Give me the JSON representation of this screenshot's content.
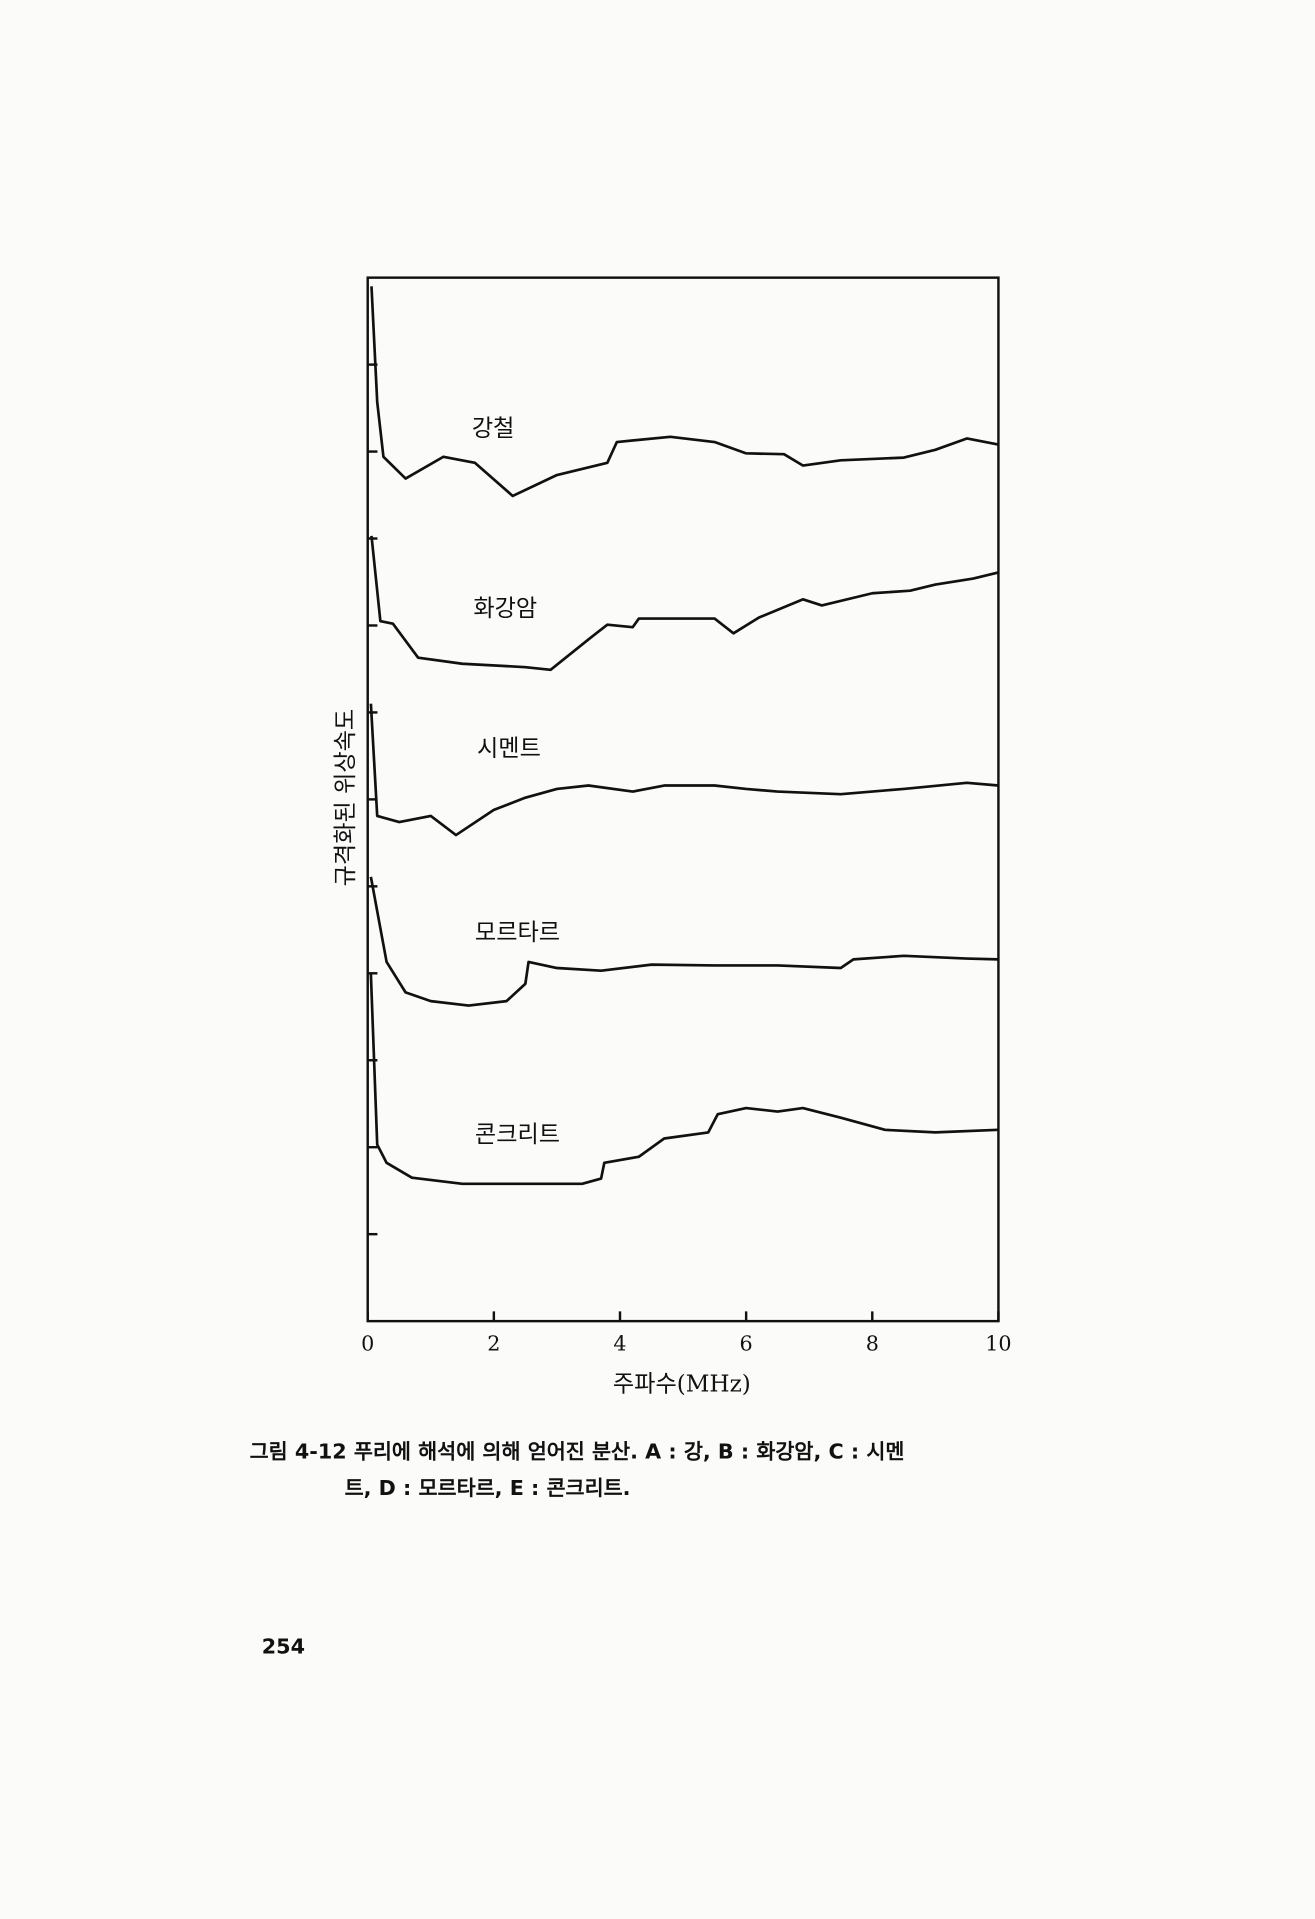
{
  "chart_data": {
    "type": "line",
    "xlabel": "주파수(MHz)",
    "ylabel": "규격화된 위상속도",
    "xlim": [
      0,
      10
    ],
    "xticks": [
      0,
      2,
      4,
      6,
      8,
      10
    ],
    "ylim": [
      0,
      12
    ],
    "yticks": [
      1,
      2,
      3,
      4,
      5,
      6,
      7,
      8,
      9,
      10,
      11
    ],
    "series": [
      {
        "name": "강철",
        "color": "#111111",
        "x": [
          0.06,
          0.15,
          0.25,
          0.6,
          1.2,
          1.7,
          2.3,
          3.0,
          3.8,
          3.95,
          4.8,
          5.5,
          6.0,
          6.6,
          6.9,
          7.5,
          8.5,
          9.0,
          9.5,
          10
        ],
        "values": [
          11.9,
          10.57,
          9.94,
          9.69,
          9.94,
          9.87,
          9.49,
          9.73,
          9.87,
          10.11,
          10.17,
          10.11,
          9.98,
          9.97,
          9.84,
          9.9,
          9.93,
          10.02,
          10.15,
          10.08
        ]
      },
      {
        "name": "화강암",
        "color": "#111111",
        "x": [
          0.06,
          0.2,
          0.4,
          0.8,
          1.5,
          2.5,
          2.9,
          3.5,
          3.8,
          4.2,
          4.3,
          5.5,
          5.8,
          6.2,
          6.9,
          7.2,
          8.0,
          8.6,
          9.0,
          9.6,
          10
        ],
        "values": [
          9.03,
          8.05,
          8.02,
          7.63,
          7.56,
          7.52,
          7.49,
          7.84,
          8.01,
          7.98,
          8.08,
          8.08,
          7.91,
          8.09,
          8.3,
          8.23,
          8.37,
          8.4,
          8.47,
          8.54,
          8.61
        ]
      },
      {
        "name": "시멘트",
        "color": "#111111",
        "x": [
          0.05,
          0.15,
          0.5,
          1.0,
          1.4,
          2.0,
          2.5,
          3.0,
          3.5,
          4.2,
          4.7,
          5.5,
          6.0,
          6.5,
          7.5,
          8.5,
          9.5,
          10
        ],
        "values": [
          7.1,
          5.81,
          5.74,
          5.81,
          5.59,
          5.88,
          6.02,
          6.12,
          6.16,
          6.09,
          6.16,
          6.16,
          6.12,
          6.09,
          6.06,
          6.12,
          6.19,
          6.16
        ]
      },
      {
        "name": "모르타르",
        "color": "#111111",
        "x": [
          0.05,
          0.3,
          0.6,
          1.0,
          1.6,
          2.2,
          2.5,
          2.55,
          3.0,
          3.7,
          4.5,
          5.5,
          6.5,
          7.5,
          7.7,
          8.5,
          9.5,
          10
        ],
        "values": [
          5.11,
          4.13,
          3.78,
          3.68,
          3.63,
          3.68,
          3.88,
          4.13,
          4.06,
          4.03,
          4.1,
          4.09,
          4.09,
          4.06,
          4.16,
          4.2,
          4.17,
          4.16
        ]
      },
      {
        "name": "콘크리트",
        "color": "#111111",
        "x": [
          0.05,
          0.15,
          0.3,
          0.7,
          1.5,
          2.5,
          3.4,
          3.7,
          3.75,
          4.3,
          4.7,
          5.4,
          5.55,
          6.0,
          6.5,
          6.9,
          7.5,
          8.2,
          9.0,
          10
        ],
        "values": [
          3.99,
          2.03,
          1.82,
          1.65,
          1.58,
          1.58,
          1.58,
          1.64,
          1.82,
          1.89,
          2.1,
          2.17,
          2.38,
          2.45,
          2.41,
          2.45,
          2.34,
          2.2,
          2.17,
          2.2
        ]
      }
    ]
  },
  "caption": {
    "line1": "그림 4-12  푸리에 해석에 의해 얻어진 분산. A : 강, B : 화강암, C : 시멘",
    "line2": "트, D : 모르타르, E : 콘크리트."
  },
  "page_number": "254"
}
